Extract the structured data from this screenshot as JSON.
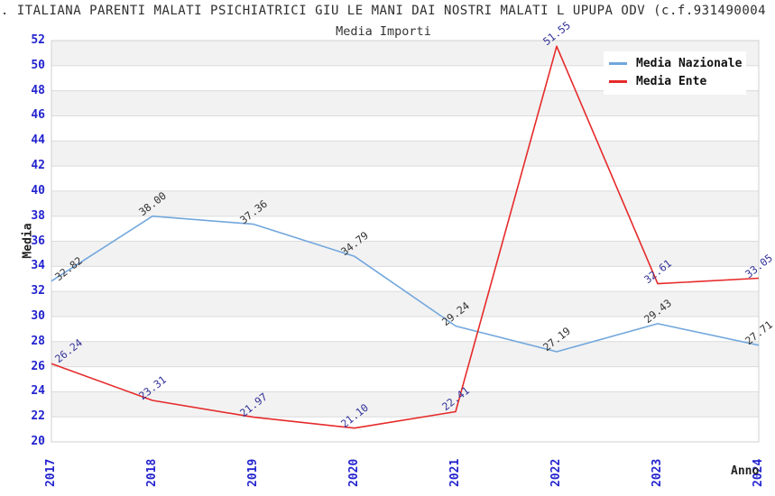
{
  "chart_data": {
    "type": "line",
    "title": ". ITALIANA PARENTI MALATI PSICHIATRICI GIU LE MANI DAI NOSTRI MALATI L UPUPA ODV (c.f.931490004",
    "subtitle": "Media Importi",
    "xlabel": "Anno",
    "ylabel": "Media",
    "categories": [
      "2017",
      "2018",
      "2019",
      "2020",
      "2021",
      "2022",
      "2023",
      "2024"
    ],
    "series": [
      {
        "name": "Media Nazionale",
        "color": "#72a7dd",
        "label_color": "#333333",
        "values": [
          32.82,
          38.0,
          37.36,
          34.79,
          29.24,
          27.19,
          29.43,
          27.71
        ]
      },
      {
        "name": "Media Ente",
        "color": "#e62a2a",
        "label_color": "#333399",
        "values": [
          26.24,
          23.31,
          21.97,
          21.1,
          22.41,
          51.55,
          32.61,
          33.05
        ]
      }
    ],
    "ylim": [
      20,
      52
    ],
    "ytick_step": 2,
    "grid": "horizontal",
    "legend_position": "top-right",
    "band_colors": [
      "#f2f2f2",
      "#ffffff"
    ],
    "gridline_color": "#dbdbdb",
    "border_color": "#d0d0d0",
    "tick_label_color": "#2323cf"
  }
}
